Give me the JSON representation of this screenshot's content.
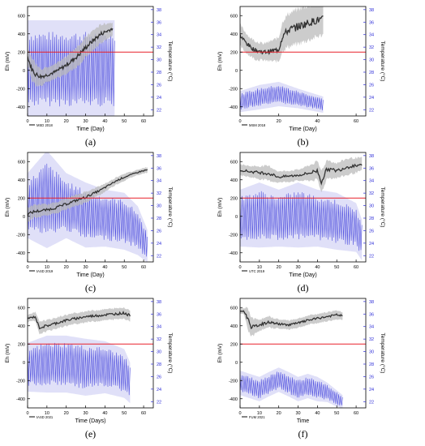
{
  "chart_data": [
    {
      "type": "line",
      "panel": "(a)",
      "xlabel": "Time (Day)",
      "ylabel": "Eh (mV)",
      "y2label": "Temperature (°C)",
      "legend": "MSD 2018",
      "xlim": [
        0,
        65
      ],
      "xticks": [
        0,
        10,
        20,
        30,
        40,
        50,
        60
      ],
      "ylim": [
        -500,
        700
      ],
      "yticks": [
        -400,
        -200,
        0,
        200,
        400,
        600
      ],
      "y2lim": [
        21,
        38.5
      ],
      "y2ticks": [
        22,
        24,
        26,
        28,
        30,
        32,
        34,
        36,
        38
      ],
      "threshold": 200,
      "series": [
        {
          "name": "Eh",
          "color": "#333333",
          "band_color": "#bbbbbb",
          "x": [
            0,
            2,
            4,
            7,
            10,
            14,
            18,
            22,
            26,
            30,
            34,
            38,
            42,
            44
          ],
          "y": [
            150,
            20,
            -40,
            -70,
            -50,
            -20,
            30,
            90,
            160,
            250,
            330,
            400,
            440,
            460
          ],
          "band": [
            90,
            120,
            120,
            90,
            80,
            80,
            90,
            100,
            110,
            110,
            110,
            100,
            80,
            70
          ]
        },
        {
          "name": "Temperature",
          "color": "#2b2bd8",
          "axis": "y2",
          "x": [
            0,
            45
          ],
          "center": [
            28.5,
            28.5
          ],
          "amp": [
            6,
            6
          ],
          "cycles": 45
        }
      ]
    },
    {
      "type": "line",
      "panel": "(b)",
      "xlabel": "Time (Day)",
      "ylabel": "Eh (mV)",
      "y2label": "Temperature (°C)",
      "legend": "MSM 2018",
      "xlim": [
        0,
        65
      ],
      "xticks": [
        0,
        20,
        40,
        60
      ],
      "ylim": [
        -500,
        700
      ],
      "yticks": [
        -400,
        -200,
        0,
        200,
        400,
        600
      ],
      "y2lim": [
        21,
        38.5
      ],
      "y2ticks": [
        22,
        24,
        26,
        28,
        30,
        32,
        34,
        36,
        38
      ],
      "threshold": 200,
      "series": [
        {
          "name": "Eh",
          "color": "#333333",
          "band_color": "#bbbbbb",
          "x": [
            0,
            2,
            5,
            8,
            12,
            16,
            20,
            22,
            25,
            30,
            35,
            40,
            43
          ],
          "y": [
            380,
            330,
            260,
            220,
            200,
            210,
            230,
            380,
            440,
            480,
            520,
            550,
            560
          ],
          "band": [
            120,
            110,
            100,
            100,
            90,
            110,
            130,
            160,
            180,
            190,
            190,
            180,
            170
          ]
        },
        {
          "name": "Temperature",
          "color": "#2b2bd8",
          "axis": "y2",
          "x": [
            0,
            10,
            20,
            30,
            43
          ],
          "center": [
            23.3,
            24,
            24.5,
            23.8,
            22.8
          ],
          "amp": [
            1.3,
            1.5,
            1.5,
            1.2,
            1
          ],
          "cycles": 43
        }
      ]
    },
    {
      "type": "line",
      "panel": "(c)",
      "xlabel": "Time (Day)",
      "ylabel": "Eh (mV)",
      "y2label": "Temperature (°C)",
      "legend": "tASD 2019",
      "xlim": [
        0,
        65
      ],
      "xticks": [
        0,
        10,
        20,
        30,
        40,
        50,
        60
      ],
      "ylim": [
        -500,
        700
      ],
      "yticks": [
        -400,
        -200,
        0,
        200,
        400,
        600
      ],
      "y2lim": [
        21,
        38.5
      ],
      "y2ticks": [
        22,
        24,
        26,
        28,
        30,
        32,
        34,
        36,
        38
      ],
      "threshold": 200,
      "series": [
        {
          "name": "Eh",
          "color": "#333333",
          "band_color": "#bbbbbb",
          "x": [
            0,
            3,
            6,
            10,
            14,
            18,
            22,
            26,
            30,
            34,
            38,
            42,
            46,
            50,
            54,
            58,
            62
          ],
          "y": [
            20,
            50,
            60,
            70,
            90,
            120,
            150,
            180,
            210,
            250,
            290,
            340,
            390,
            430,
            460,
            490,
            510
          ],
          "band": [
            80,
            70,
            70,
            60,
            60,
            60,
            60,
            60,
            60,
            50,
            50,
            40,
            40,
            40,
            30,
            30,
            30
          ]
        },
        {
          "name": "Temperature",
          "color": "#2b2bd8",
          "axis": "y2",
          "x": [
            0,
            10,
            20,
            30,
            40,
            50,
            57,
            62
          ],
          "center": [
            30,
            31,
            30,
            28.5,
            28,
            27.5,
            26,
            23.5
          ],
          "amp": [
            4,
            6,
            4,
            4,
            3.5,
            3.5,
            3,
            2
          ],
          "cycles": 62
        }
      ]
    },
    {
      "type": "line",
      "panel": "(d)",
      "xlabel": "Time (Day)",
      "ylabel": "Eh (mV)",
      "y2label": "Temperature (°C)",
      "legend": "UTC 2019",
      "xlim": [
        0,
        65
      ],
      "xticks": [
        0,
        10,
        20,
        30,
        40,
        50,
        60
      ],
      "ylim": [
        -500,
        700
      ],
      "yticks": [
        -400,
        -200,
        0,
        200,
        400,
        600
      ],
      "y2lim": [
        21,
        38.5
      ],
      "y2ticks": [
        22,
        24,
        26,
        28,
        30,
        32,
        34,
        36,
        38
      ],
      "threshold": 200,
      "series": [
        {
          "name": "Eh",
          "color": "#333333",
          "band_color": "#bbbbbb",
          "x": [
            0,
            5,
            10,
            15,
            20,
            25,
            30,
            35,
            40,
            42,
            45,
            50,
            55,
            60,
            63
          ],
          "y": [
            510,
            490,
            480,
            470,
            430,
            440,
            450,
            470,
            500,
            380,
            520,
            500,
            540,
            560,
            570
          ],
          "band": [
            60,
            60,
            70,
            80,
            60,
            60,
            60,
            80,
            100,
            120,
            100,
            80,
            90,
            80,
            70
          ]
        },
        {
          "name": "Temperature",
          "color": "#2b2bd8",
          "axis": "y2",
          "x": [
            0,
            10,
            20,
            30,
            40,
            50,
            60,
            63
          ],
          "center": [
            28,
            28.5,
            28,
            28.5,
            28,
            27.5,
            26.5,
            24.5
          ],
          "amp": [
            3.5,
            4,
            3.5,
            4,
            3.5,
            3.5,
            3,
            2.5
          ],
          "cycles": 63
        }
      ]
    },
    {
      "type": "line",
      "panel": "(e)",
      "xlabel": "Time (Days)",
      "ylabel": "Eh (mV)",
      "y2label": "Temperature (°C)",
      "legend": "tASD 2021",
      "xlim": [
        0,
        65
      ],
      "xticks": [
        0,
        10,
        20,
        30,
        40,
        50,
        60
      ],
      "ylim": [
        -500,
        700
      ],
      "yticks": [
        -400,
        -200,
        0,
        200,
        400,
        600
      ],
      "y2lim": [
        21,
        38.5
      ],
      "y2ticks": [
        22,
        24,
        26,
        28,
        30,
        32,
        34,
        36,
        38
      ],
      "threshold": 200,
      "series": [
        {
          "name": "Eh",
          "color": "#333333",
          "band_color": "#bbbbbb",
          "x": [
            0,
            2,
            4,
            6,
            10,
            15,
            20,
            25,
            30,
            35,
            40,
            45,
            50,
            53
          ],
          "y": [
            480,
            490,
            500,
            380,
            400,
            430,
            460,
            480,
            500,
            510,
            520,
            530,
            540,
            510
          ],
          "band": [
            40,
            40,
            50,
            70,
            60,
            60,
            60,
            60,
            60,
            60,
            60,
            60,
            60,
            60
          ]
        },
        {
          "name": "Temperature",
          "color": "#2b2bd8",
          "axis": "y2",
          "x": [
            0,
            10,
            20,
            30,
            40,
            50,
            53
          ],
          "center": [
            27.5,
            28,
            28,
            27.5,
            27.5,
            26.5,
            25
          ],
          "amp": [
            3,
            3.5,
            3.5,
            3.5,
            3.2,
            3,
            2.5
          ],
          "cycles": 53
        }
      ]
    },
    {
      "type": "line",
      "panel": "(f)",
      "xlabel": "Time",
      "ylabel": "Eh (mV)",
      "y2label": "Temperature (°C)",
      "legend": "FUM 2021",
      "xlim": [
        0,
        65
      ],
      "xticks": [
        0,
        10,
        20,
        30,
        40,
        50,
        60
      ],
      "ylim": [
        -500,
        700
      ],
      "yticks": [
        -400,
        -200,
        0,
        200,
        400,
        600
      ],
      "y2lim": [
        21,
        38.5
      ],
      "y2ticks": [
        22,
        24,
        26,
        28,
        30,
        32,
        34,
        36,
        38
      ],
      "threshold": 200,
      "series": [
        {
          "name": "Eh",
          "color": "#333333",
          "band_color": "#bbbbbb",
          "x": [
            0,
            2,
            4,
            6,
            10,
            15,
            20,
            25,
            30,
            35,
            40,
            45,
            50,
            53
          ],
          "y": [
            560,
            560,
            480,
            380,
            410,
            440,
            420,
            410,
            430,
            460,
            480,
            500,
            520,
            510
          ],
          "band": [
            30,
            30,
            120,
            100,
            60,
            60,
            50,
            50,
            50,
            50,
            50,
            50,
            50,
            40
          ]
        },
        {
          "name": "Temperature",
          "color": "#2b2bd8",
          "axis": "y2",
          "x": [
            0,
            5,
            10,
            15,
            20,
            25,
            30,
            35,
            40,
            45,
            50,
            53
          ],
          "center": [
            25,
            24.5,
            24,
            24.8,
            25.5,
            24.8,
            24,
            24.5,
            24,
            23.5,
            22.5,
            22
          ],
          "amp": [
            1.5,
            1.5,
            1.5,
            1.5,
            1.5,
            1.5,
            1.5,
            1.5,
            1.5,
            1.2,
            1,
            0.8
          ],
          "cycles": 53
        }
      ]
    }
  ]
}
